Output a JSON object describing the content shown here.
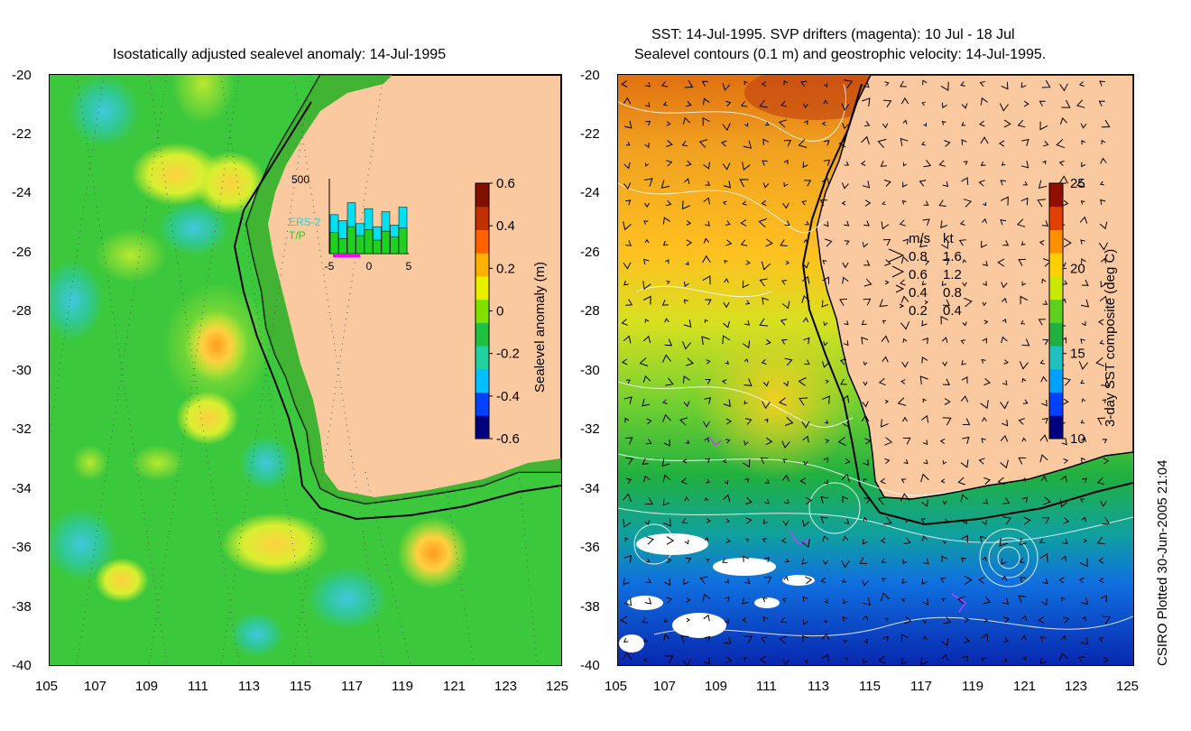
{
  "left_panel": {
    "title": "Isostatically adjusted sealevel anomaly: 14-Jul-1995",
    "y_ticks": [
      "-20",
      "-22",
      "-24",
      "-26",
      "-28",
      "-30",
      "-32",
      "-34",
      "-36",
      "-38",
      "-40"
    ],
    "x_ticks": [
      "105",
      "107",
      "109",
      "111",
      "113",
      "115",
      "117",
      "119",
      "121",
      "123",
      "125"
    ],
    "colorbar": {
      "label": "Sealevel anomaly (m)",
      "ticks": [
        "0.6",
        "0.4",
        "0.2",
        "0",
        "-0.2",
        "-0.4",
        "-0.6"
      ],
      "colors": [
        "#00007f",
        "#0040ff",
        "#00c0ff",
        "#20d0a0",
        "#20c040",
        "#80e000",
        "#e8f000",
        "#ffb000",
        "#ff6000",
        "#c03000",
        "#801000"
      ]
    },
    "inset": {
      "ymax_label": "500",
      "series": [
        "ERS-2",
        "T/P"
      ],
      "x_ticks": [
        "-5",
        "0",
        "5"
      ],
      "ers2_color": "#00e0f0",
      "tp_color": "#20d020",
      "ers2_values": [
        260,
        220,
        340,
        200,
        300,
        180,
        280,
        190,
        310
      ],
      "tp_values": [
        140,
        100,
        180,
        120,
        160,
        90,
        150,
        110,
        170
      ]
    }
  },
  "right_panel": {
    "title_line1": "SST: 14-Jul-1995. SVP drifters (magenta): 10 Jul - 18 Jul",
    "title_line2": "Sealevel contours (0.1 m) and geostrophic velocity: 14-Jul-1995.",
    "y_ticks": [
      "-20",
      "-22",
      "-24",
      "-26",
      "-28",
      "-30",
      "-32",
      "-34",
      "-36",
      "-38",
      "-40"
    ],
    "x_ticks": [
      "105",
      "107",
      "109",
      "111",
      "113",
      "115",
      "117",
      "119",
      "121",
      "123",
      "125"
    ],
    "legend": {
      "header_ms": "m/s",
      "header_kt": "kt",
      "rows": [
        {
          "ms": "0.8",
          "kt": "1.6"
        },
        {
          "ms": "0.6",
          "kt": "1.2"
        },
        {
          "ms": "0.4",
          "kt": "0.8"
        },
        {
          "ms": "0.2",
          "kt": "0.4"
        }
      ]
    },
    "colorbar": {
      "label": "3-day SST composite (deg C)",
      "ticks": [
        "25",
        "20",
        "15",
        "10"
      ],
      "colors": [
        "#00007f",
        "#0040ff",
        "#00a0ff",
        "#20c0c0",
        "#20b040",
        "#60d020",
        "#c8e800",
        "#ffd000",
        "#ff9000",
        "#e04000",
        "#901000"
      ]
    },
    "credit": "CSIRO Plotted 30-Jun-2005 21:04"
  },
  "land_color": "#fbc99f"
}
